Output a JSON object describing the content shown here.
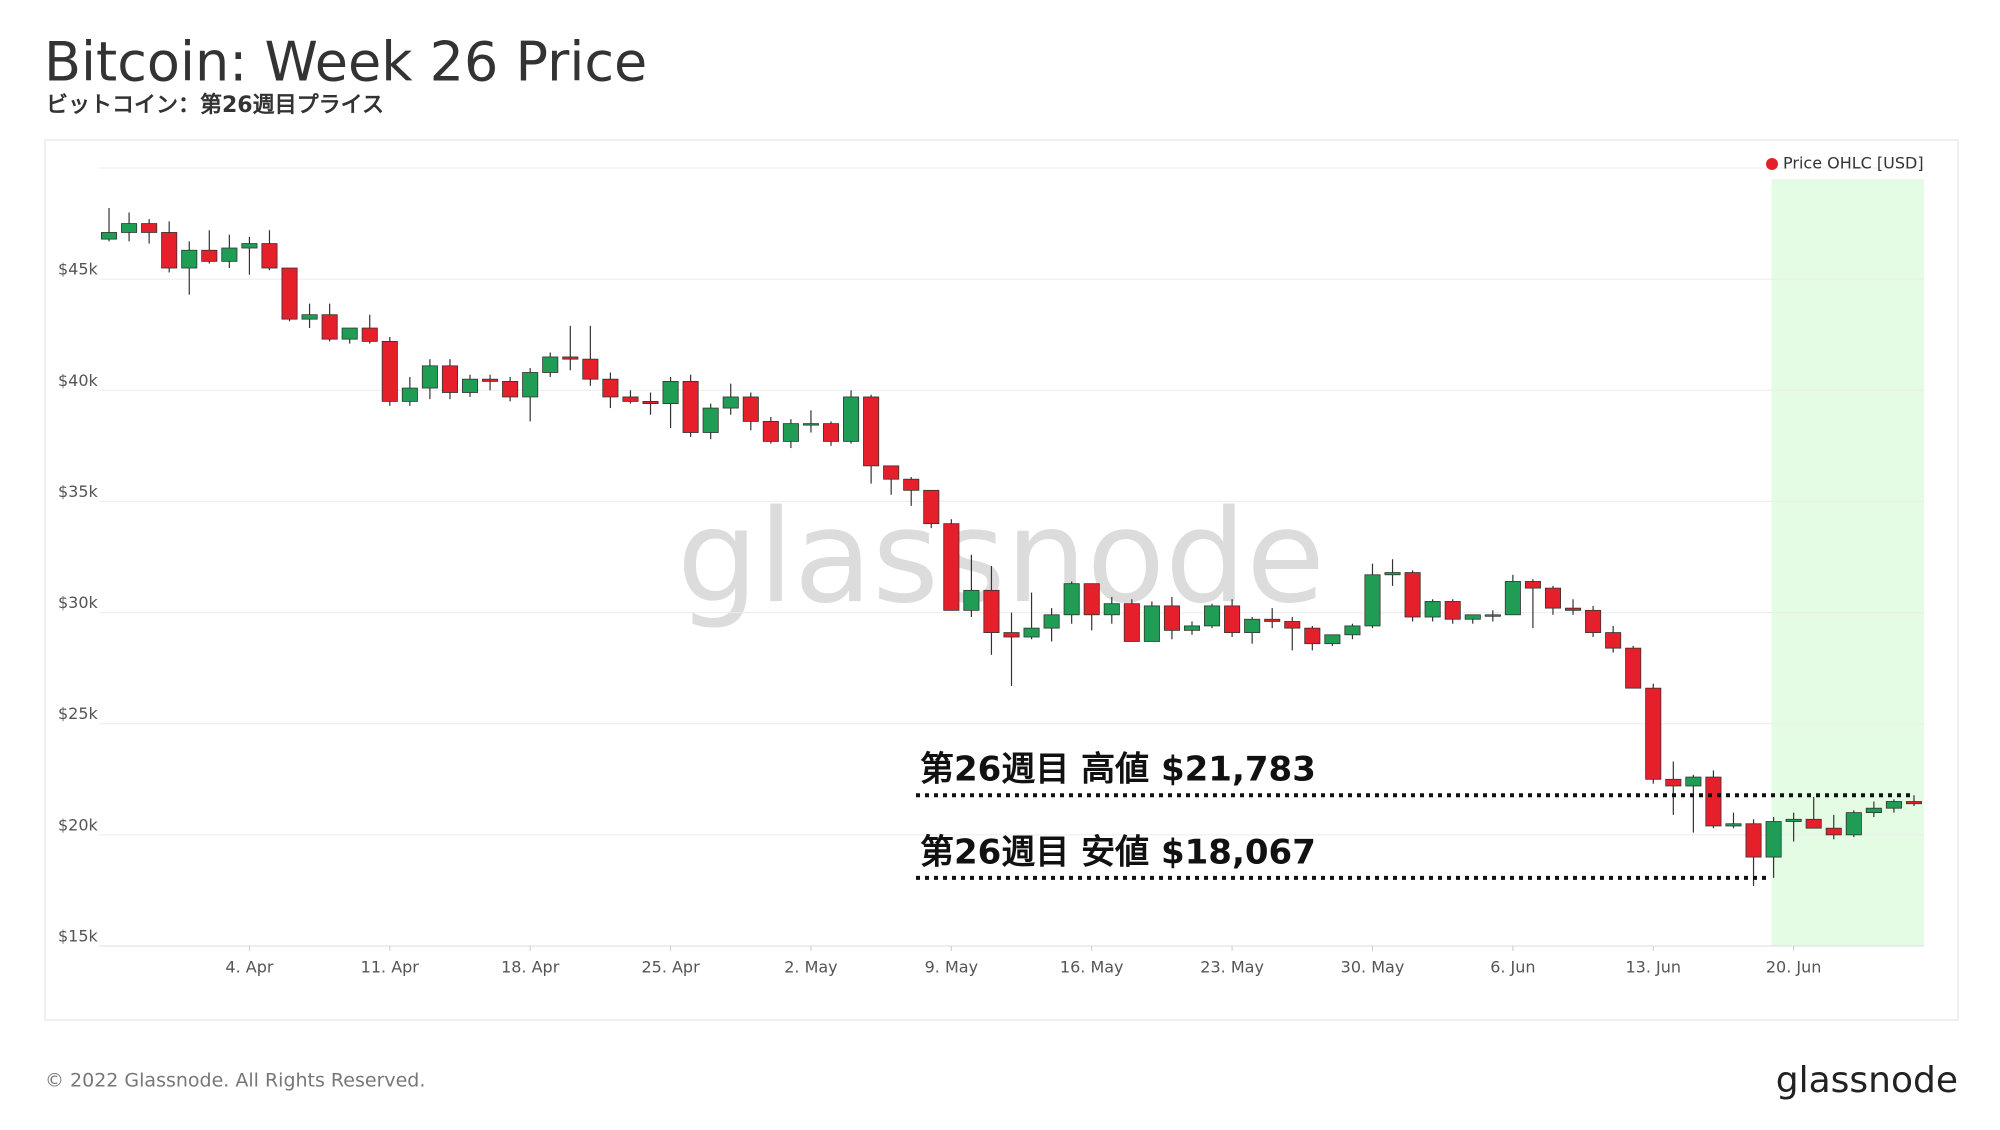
{
  "chart_data": {
    "type": "candlestick",
    "title": "Bitcoin: Week 26 Price",
    "subtitle": "ビットコイン：第26週目プライス",
    "watermark": "glassnode",
    "footer": "© 2022 Glassnode. All Rights Reserved.",
    "brand": "glassnode",
    "legend_position": "top-right",
    "grid": true,
    "x": [
      "28. Mar",
      "29. Mar",
      "30. Mar",
      "31. Mar",
      "1. Apr",
      "2. Apr",
      "3. Apr",
      "4. Apr",
      "5. Apr",
      "6. Apr",
      "7. Apr",
      "8. Apr",
      "9. Apr",
      "10. Apr",
      "11. Apr",
      "12. Apr",
      "13. Apr",
      "14. Apr",
      "15. Apr",
      "16. Apr",
      "17. Apr",
      "18. Apr",
      "19. Apr",
      "20. Apr",
      "21. Apr",
      "22. Apr",
      "23. Apr",
      "24. Apr",
      "25. Apr",
      "26. Apr",
      "27. Apr",
      "28. Apr",
      "29. Apr",
      "30. Apr",
      "1. May",
      "2. May",
      "3. May",
      "4. May",
      "5. May",
      "6. May",
      "7. May",
      "8. May",
      "9. May",
      "10. May",
      "11. May",
      "12. May",
      "13. May",
      "14. May",
      "15. May",
      "16. May",
      "17. May",
      "18. May",
      "19. May",
      "20. May",
      "21. May",
      "22. May",
      "23. May",
      "24. May",
      "25. May",
      "26. May",
      "27. May",
      "28. May",
      "29. May",
      "30. May",
      "31. May",
      "1. Jun",
      "2. Jun",
      "3. Jun",
      "4. Jun",
      "5. Jun",
      "6. Jun",
      "7. Jun",
      "8. Jun",
      "9. Jun",
      "10. Jun",
      "11. Jun",
      "12. Jun",
      "13. Jun",
      "14. Jun",
      "15. Jun",
      "16. Jun",
      "17. Jun",
      "18. Jun",
      "19. Jun",
      "20. Jun",
      "21. Jun",
      "22. Jun",
      "23. Jun",
      "24. Jun",
      "25. Jun",
      "26. Jun"
    ],
    "xlim": [
      -0.5,
      90.5
    ],
    "xticks": [
      {
        "value": 7,
        "label": "4. Apr"
      },
      {
        "value": 14,
        "label": "11. Apr"
      },
      {
        "value": 21,
        "label": "18. Apr"
      },
      {
        "value": 28,
        "label": "25. Apr"
      },
      {
        "value": 35,
        "label": "2. May"
      },
      {
        "value": 42,
        "label": "9. May"
      },
      {
        "value": 49,
        "label": "16. May"
      },
      {
        "value": 56,
        "label": "23. May"
      },
      {
        "value": 63,
        "label": "30. May"
      },
      {
        "value": 70,
        "label": "6. Jun"
      },
      {
        "value": 77,
        "label": "13. Jun"
      },
      {
        "value": 84,
        "label": "20. Jun"
      }
    ],
    "ylim": [
      15000,
      50000
    ],
    "yticks": [
      {
        "value": 15000,
        "label": "$15k"
      },
      {
        "value": 20000,
        "label": "$20k"
      },
      {
        "value": 25000,
        "label": "$25k"
      },
      {
        "value": 30000,
        "label": "$30k"
      },
      {
        "value": 35000,
        "label": "$35k"
      },
      {
        "value": 40000,
        "label": "$40k"
      },
      {
        "value": 45000,
        "label": "$45k"
      }
    ],
    "series": [
      {
        "name": "Price OHLC [USD]",
        "color": "#e5202a",
        "up_color": "#1f9d55",
        "down_color": "#e5202a",
        "open": [
          46800,
          47100,
          47500,
          47100,
          45500,
          46300,
          45800,
          46400,
          46600,
          45500,
          43200,
          43400,
          42300,
          42800,
          42200,
          39500,
          40100,
          41100,
          39900,
          40500,
          40400,
          39700,
          40800,
          41500,
          41400,
          40500,
          39700,
          39500,
          39400,
          40400,
          38100,
          39200,
          39700,
          38600,
          37700,
          38500,
          38500,
          37700,
          39700,
          36600,
          36000,
          35500,
          34000,
          30100,
          31000,
          29100,
          28900,
          29300,
          29900,
          31300,
          29900,
          30400,
          28700,
          30300,
          29200,
          29400,
          30300,
          29100,
          29700,
          29600,
          29300,
          28600,
          29000,
          29400,
          31700,
          31800,
          29800,
          30500,
          29700,
          29900,
          29900,
          31400,
          31100,
          30200,
          30100,
          29100,
          28400,
          26600,
          22500,
          22200,
          22600,
          20400,
          20500,
          19000,
          20600,
          20700,
          20300,
          20000,
          21000,
          21200,
          21500
        ],
        "high": [
          48200,
          48000,
          47700,
          47600,
          46700,
          47200,
          47000,
          46900,
          47200,
          45500,
          43900,
          43900,
          42800,
          43400,
          42400,
          40600,
          41400,
          41400,
          40700,
          40700,
          40600,
          41000,
          41700,
          42900,
          42900,
          40800,
          40000,
          39900,
          40600,
          40700,
          39400,
          40300,
          39900,
          38800,
          38700,
          39100,
          38600,
          40000,
          39800,
          36600,
          36100,
          35500,
          34200,
          32600,
          32100,
          30000,
          30900,
          30200,
          31400,
          31300,
          30700,
          30600,
          30500,
          30700,
          29600,
          30400,
          30600,
          29800,
          30200,
          29800,
          29400,
          29000,
          29500,
          32200,
          32400,
          31900,
          30600,
          30600,
          29900,
          30100,
          31700,
          31500,
          31200,
          30600,
          30300,
          29400,
          28500,
          26800,
          23300,
          22700,
          22900,
          21000,
          20700,
          20800,
          21000,
          21700,
          20900,
          21100,
          21500,
          21600,
          21783
        ],
        "low": [
          46700,
          46700,
          46600,
          45300,
          44300,
          45700,
          45500,
          45200,
          45400,
          43100,
          42800,
          42200,
          42100,
          42100,
          39300,
          39300,
          39600,
          39600,
          39700,
          40000,
          39500,
          38600,
          40600,
          40900,
          40200,
          39200,
          39400,
          38900,
          38300,
          37900,
          37800,
          38900,
          38200,
          37600,
          37400,
          38100,
          37500,
          37600,
          35800,
          35300,
          34800,
          33800,
          30100,
          29800,
          28100,
          26700,
          28800,
          28700,
          29500,
          29200,
          29500,
          28700,
          28700,
          28800,
          29000,
          29300,
          28900,
          28600,
          29300,
          28300,
          28300,
          28500,
          28800,
          29300,
          31200,
          29600,
          29600,
          29500,
          29500,
          29600,
          29900,
          29300,
          29900,
          29900,
          28900,
          28200,
          26600,
          22300,
          20900,
          20100,
          20300,
          20300,
          17700,
          18067,
          19700,
          20400,
          19800,
          19900,
          20800,
          21000,
          21300
        ],
        "close": [
          47100,
          47500,
          47100,
          45500,
          46300,
          45800,
          46400,
          46600,
          45500,
          43200,
          43400,
          42300,
          42800,
          42200,
          39500,
          40100,
          41100,
          39900,
          40500,
          40400,
          39700,
          40800,
          41500,
          41400,
          40500,
          39700,
          39500,
          39400,
          40400,
          38100,
          39200,
          39700,
          38600,
          37700,
          38500,
          38500,
          37700,
          39700,
          36600,
          36000,
          35500,
          34000,
          30100,
          31000,
          29100,
          28900,
          29300,
          29900,
          31300,
          29900,
          30400,
          28700,
          30300,
          29200,
          29400,
          30300,
          29100,
          29700,
          29600,
          29300,
          28600,
          29000,
          29400,
          31700,
          31800,
          29800,
          30500,
          29700,
          29900,
          29900,
          31400,
          31100,
          30200,
          30100,
          29100,
          28400,
          26600,
          22500,
          22200,
          22600,
          20400,
          20500,
          19000,
          20600,
          20700,
          20300,
          20000,
          21000,
          21200,
          21500,
          21400
        ]
      }
    ],
    "annotations": [
      {
        "text": "第26週目 高値 $21,783",
        "value": 21783
      },
      {
        "text": "第26週目 安値 $18,067",
        "value": 18067
      }
    ]
  }
}
